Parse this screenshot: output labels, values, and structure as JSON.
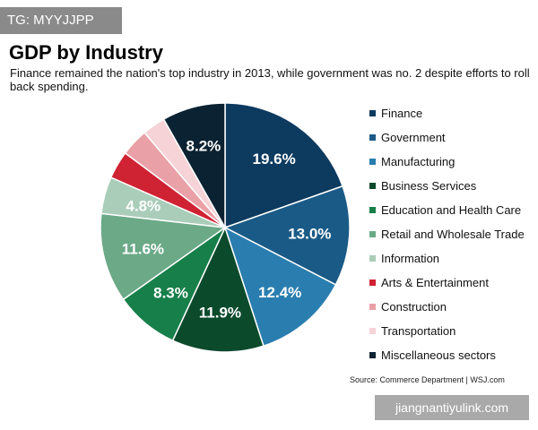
{
  "watermark_top": "TG: MYYJJPP",
  "watermark_bottom": "jiangnantiyulink.com",
  "source": "Source: Commerce Department  |  WSJ.com",
  "chart_data": {
    "type": "pie",
    "title": "GDP by Industry",
    "subtitle": "Finance remained the nation's top industry in 2013, while government was no. 2 despite efforts to roll back spending.",
    "legend_position": "right",
    "slices": [
      {
        "name": "Finance",
        "value": 19.6,
        "label": "19.6%",
        "color": "#0d3a5f"
      },
      {
        "name": "Government",
        "value": 13.0,
        "label": "13.0%",
        "color": "#1a5a86"
      },
      {
        "name": "Manufacturing",
        "value": 12.4,
        "label": "12.4%",
        "color": "#2a7eaf"
      },
      {
        "name": "Business Services",
        "value": 11.9,
        "label": "11.9%",
        "color": "#0c4a2c"
      },
      {
        "name": "Education and Health Care",
        "value": 8.3,
        "label": "8.3%",
        "color": "#17804a"
      },
      {
        "name": "Retail and Wholesale Trade",
        "value": 11.6,
        "label": "11.6%",
        "color": "#6ba987"
      },
      {
        "name": "Information",
        "value": 4.8,
        "label": "4.8%",
        "color": "#a9cdb9"
      },
      {
        "name": "Arts & Entertainment",
        "value": 3.6,
        "label": "",
        "color": "#cf2233"
      },
      {
        "name": "Construction",
        "value": 3.6,
        "label": "",
        "color": "#e9a0a6"
      },
      {
        "name": "Transportation",
        "value": 3.0,
        "label": "",
        "color": "#f6d3d7"
      },
      {
        "name": "Miscellaneous sectors",
        "value": 8.2,
        "label": "8.2%",
        "color": "#0b2232"
      }
    ]
  }
}
